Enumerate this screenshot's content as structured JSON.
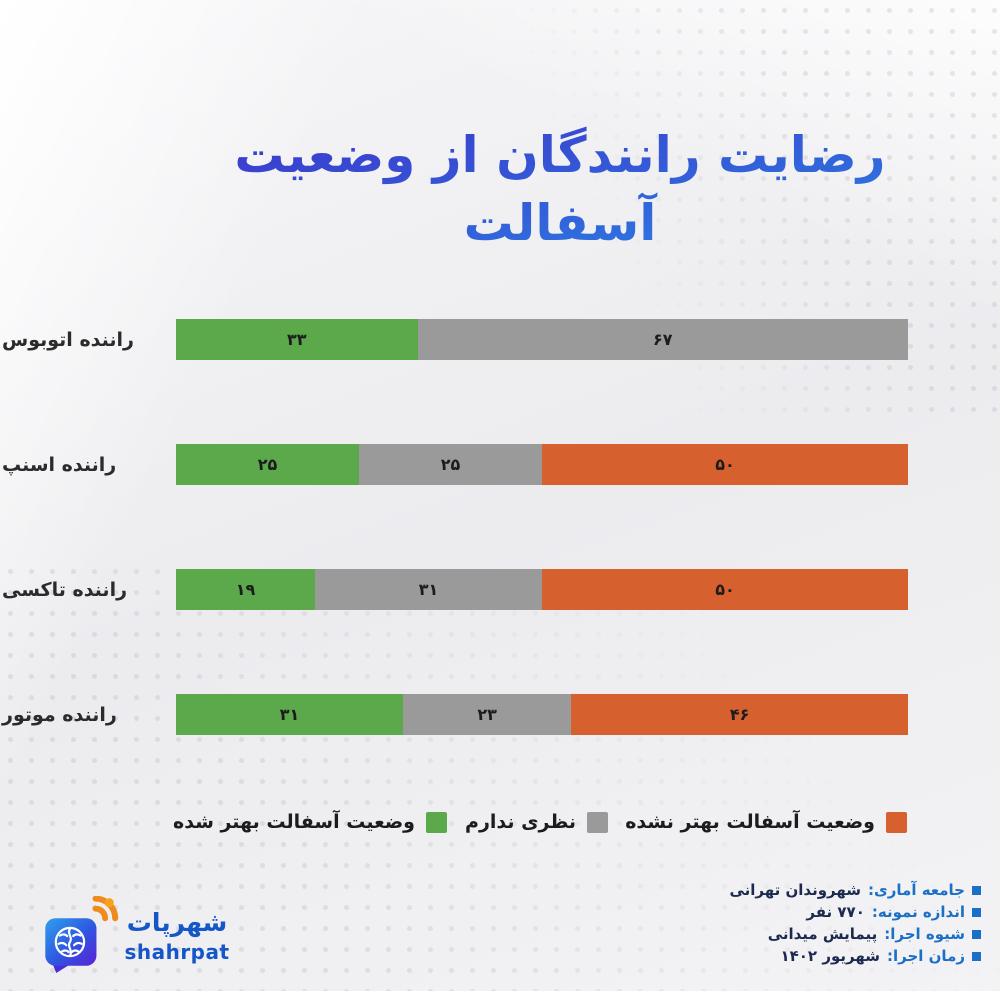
{
  "page": {
    "title": "رضایت رانندگان از وضعیت آسفالت"
  },
  "chart_data": {
    "type": "bar",
    "orientation": "horizontal-stacked",
    "rtl": true,
    "xlim": [
      0,
      100
    ],
    "grid": false,
    "legend_position": "bottom",
    "title": "رضایت رانندگان از وضعیت آسفالت",
    "categories": [
      "راننده اتوبوس",
      "راننده اسنپ",
      "راننده تاکسی",
      "راننده موتور"
    ],
    "series": [
      {
        "name": "وضعیت آسفالت بهتر شده",
        "color": "#5ba94b",
        "values": [
          33,
          25,
          19,
          31
        ],
        "value_labels": [
          "۳۳",
          "۲۵",
          "۱۹",
          "۳۱"
        ]
      },
      {
        "name": "نظری ندارم",
        "color": "#9a9a9a",
        "values": [
          67,
          25,
          31,
          23
        ],
        "value_labels": [
          "۶۷",
          "۲۵",
          "۳۱",
          "۲۳"
        ]
      },
      {
        "name": "وضعیت آسفالت بهتر نشده",
        "color": "#d7602f",
        "values": [
          0,
          50,
          50,
          46
        ],
        "value_labels": [
          "",
          "۵۰",
          "۵۰",
          "۴۶"
        ]
      }
    ]
  },
  "legend": {
    "items": [
      {
        "label": "وضعیت آسفالت بهتر نشده",
        "color": "#d7602f"
      },
      {
        "label": "نظری ندارم",
        "color": "#9a9a9a"
      },
      {
        "label": "وضعیت آسفالت بهتر شده",
        "color": "#5ba94b"
      }
    ]
  },
  "footer": {
    "bullet_color": "#1b6fc5",
    "info": [
      {
        "label": "جامعه آماری:",
        "value": "شهروندان تهرانی"
      },
      {
        "label": "اندازه نمونه:",
        "value": "۷۷۰ نفر"
      },
      {
        "label": "شیوه اجرا:",
        "value": "پیمایش میدانی"
      },
      {
        "label": "زمان اجرا:",
        "value": "شهریور ۱۴۰۲"
      }
    ]
  },
  "logo": {
    "name_fa": "شهرپات",
    "name_en": "shahrpat",
    "brand_blue": "#1657c8",
    "brand_orange": "#ef8b1c"
  },
  "colors": {
    "title_gradient_start": "#3c38cc",
    "title_gradient_end": "#2c7ce2",
    "green": "#5ba94b",
    "gray": "#9a9a9a",
    "orange": "#d7602f"
  }
}
